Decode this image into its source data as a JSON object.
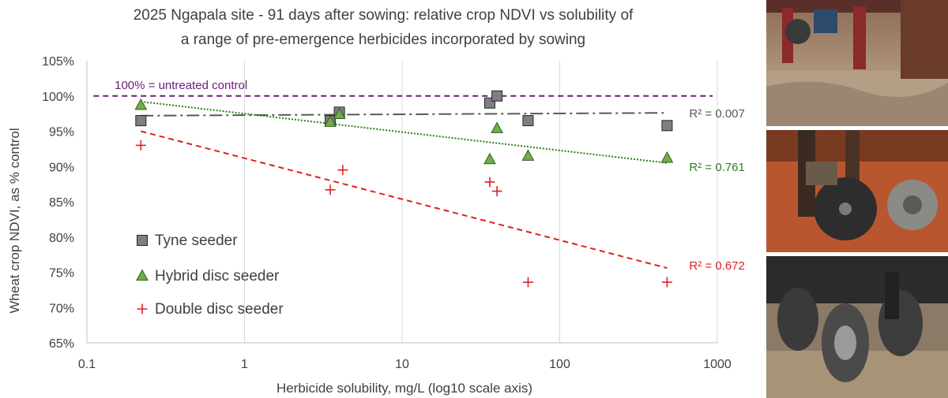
{
  "chart_data": {
    "type": "scatter",
    "title_line1": "2025 Ngapala site - 91 days after sowing:  relative crop NDVI vs solubility of",
    "title_line2": "a range of pre-emergence herbicides incorporated by sowing",
    "xlabel": "Herbicide solubility, mg/L (log10 scale axis)",
    "ylabel": "Wheat crop NDVI, as % control",
    "x_scale": "log10",
    "xlim": [
      0.1,
      1000
    ],
    "ylim": [
      65,
      105
    ],
    "x_ticks": [
      0.1,
      1,
      10,
      100,
      1000
    ],
    "x_tick_labels": [
      "0.1",
      "1",
      "10",
      "100",
      "1000"
    ],
    "y_ticks": [
      65,
      70,
      75,
      80,
      85,
      90,
      95,
      100,
      105
    ],
    "y_tick_labels": [
      "65%",
      "70%",
      "75%",
      "80%",
      "85%",
      "90%",
      "95%",
      "100%",
      "105%"
    ],
    "grid": "vertical gridlines at log decades",
    "legend_position": "bottom-left",
    "reference_line": {
      "y": 100,
      "label": "100% = untreated control",
      "color": "#6a1b7a"
    },
    "series": [
      {
        "name": "Tyne seeder",
        "marker": "square",
        "color": "#7f7f7f",
        "points": [
          [
            0.22,
            96.5
          ],
          [
            3.5,
            96.5
          ],
          [
            4.0,
            97.7
          ],
          [
            36,
            99.0
          ],
          [
            40,
            100.0
          ],
          [
            63,
            96.5
          ],
          [
            480,
            95.8
          ]
        ],
        "trend": {
          "x": [
            0.22,
            480
          ],
          "y": [
            97.2,
            97.6
          ],
          "r2_label": "R² = 0.007",
          "color": "#595959"
        }
      },
      {
        "name": "Hybrid disc seeder",
        "marker": "triangle",
        "color": "#70ad47",
        "points": [
          [
            0.22,
            98.7
          ],
          [
            3.5,
            96.3
          ],
          [
            4.0,
            97.4
          ],
          [
            36,
            91.0
          ],
          [
            40,
            95.4
          ],
          [
            63,
            91.5
          ],
          [
            480,
            91.2
          ]
        ],
        "trend": {
          "x": [
            0.22,
            480
          ],
          "y": [
            99.2,
            90.5
          ],
          "r2_label": "R² = 0.761",
          "color": "#2e7d1e"
        }
      },
      {
        "name": "Double disc seeder",
        "marker": "plus",
        "color": "#e02020",
        "points": [
          [
            0.22,
            93.0
          ],
          [
            3.5,
            86.7
          ],
          [
            4.2,
            89.5
          ],
          [
            36,
            87.8
          ],
          [
            40,
            86.5
          ],
          [
            63,
            73.6
          ],
          [
            480,
            73.6
          ]
        ],
        "trend": {
          "x": [
            0.22,
            480
          ],
          "y": [
            95.0,
            75.6
          ],
          "r2_label": "R² = 0.672",
          "color": "#e02020"
        }
      }
    ]
  },
  "photos": [
    {
      "icon": "tyne-seeder-photo"
    },
    {
      "icon": "hybrid-disc-seeder-photo"
    },
    {
      "icon": "double-disc-seeder-photo"
    }
  ]
}
